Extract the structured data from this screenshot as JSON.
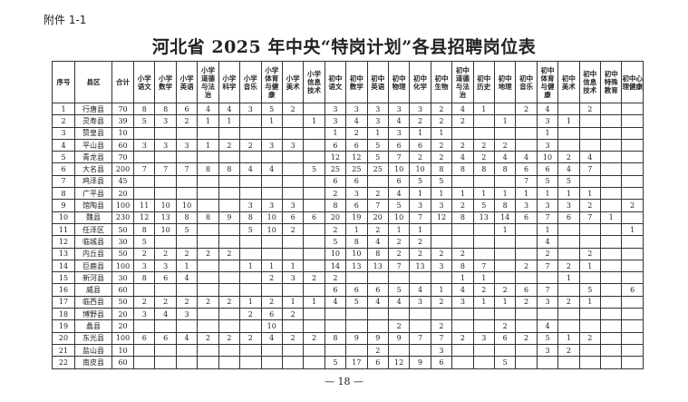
{
  "attachment_label": "附件 1-1",
  "title": "河北省 2025 年中央“特岗计划”各县招聘岗位表",
  "page_number": "— 18 —",
  "table": {
    "headers": [
      "序号",
      "县区",
      "合计",
      "小学语文",
      "小学数学",
      "小学英语",
      "小学道德与法治",
      "小学科学",
      "小学音乐",
      "小学体育与健康",
      "小学美术",
      "小学信息技术",
      "初中语文",
      "初中数学",
      "初中英语",
      "初中物理",
      "初中化学",
      "初中生物",
      "初中道德与法治",
      "初中历史",
      "初中地理",
      "初中音乐",
      "初中体育与健康",
      "初中美术",
      "初中信息技术",
      "初中特殊教育",
      "初中心理健康"
    ],
    "rows": [
      [
        "1",
        "行唐县",
        "70",
        "8",
        "8",
        "6",
        "4",
        "4",
        "3",
        "5",
        "2",
        "",
        "3",
        "3",
        "3",
        "3",
        "3",
        "2",
        "4",
        "1",
        "",
        "2",
        "4",
        "",
        "2",
        "",
        ""
      ],
      [
        "2",
        "灵寿县",
        "39",
        "5",
        "3",
        "2",
        "1",
        "1",
        "",
        "1",
        "",
        "1",
        "3",
        "4",
        "3",
        "4",
        "2",
        "2",
        "2",
        "",
        "1",
        "",
        "3",
        "1",
        "",
        "",
        ""
      ],
      [
        "3",
        "赞皇县",
        "10",
        "",
        "",
        "",
        "",
        "",
        "",
        "",
        "",
        "",
        "1",
        "2",
        "1",
        "3",
        "1",
        "1",
        "",
        "",
        "",
        "",
        "1",
        "",
        "",
        "",
        ""
      ],
      [
        "4",
        "平山县",
        "60",
        "3",
        "3",
        "3",
        "1",
        "2",
        "2",
        "3",
        "3",
        "",
        "6",
        "6",
        "5",
        "6",
        "6",
        "2",
        "2",
        "2",
        "2",
        "",
        "3",
        "",
        "",
        "",
        ""
      ],
      [
        "5",
        "青龙县",
        "70",
        "",
        "",
        "",
        "",
        "",
        "",
        "",
        "",
        "",
        "12",
        "12",
        "5",
        "7",
        "2",
        "2",
        "4",
        "2",
        "4",
        "4",
        "10",
        "2",
        "4",
        "",
        ""
      ],
      [
        "6",
        "大名县",
        "200",
        "7",
        "7",
        "7",
        "8",
        "8",
        "4",
        "4",
        "",
        "5",
        "25",
        "25",
        "25",
        "10",
        "10",
        "8",
        "8",
        "8",
        "8",
        "6",
        "6",
        "4",
        "7",
        "",
        ""
      ],
      [
        "7",
        "鸡泽县",
        "45",
        "",
        "",
        "",
        "",
        "",
        "",
        "",
        "",
        "",
        "6",
        "6",
        "",
        "6",
        "5",
        "5",
        "",
        "",
        "",
        "7",
        "5",
        "5",
        "",
        "",
        ""
      ],
      [
        "8",
        "广平县",
        "20",
        "",
        "",
        "",
        "",
        "",
        "",
        "",
        "",
        "",
        "2",
        "3",
        "2",
        "4",
        "1",
        "1",
        "1",
        "1",
        "1",
        "1",
        "1",
        "1",
        "1",
        "",
        ""
      ],
      [
        "9",
        "馆陶县",
        "100",
        "11",
        "10",
        "10",
        "",
        "",
        "3",
        "3",
        "3",
        "",
        "8",
        "6",
        "7",
        "5",
        "3",
        "3",
        "2",
        "5",
        "8",
        "3",
        "3",
        "3",
        "2",
        "",
        "2"
      ],
      [
        "10",
        "魏县",
        "230",
        "12",
        "13",
        "8",
        "8",
        "9",
        "8",
        "10",
        "6",
        "6",
        "20",
        "19",
        "20",
        "10",
        "7",
        "12",
        "8",
        "13",
        "14",
        "6",
        "7",
        "6",
        "7",
        "1",
        ""
      ],
      [
        "11",
        "任泽区",
        "50",
        "8",
        "10",
        "5",
        "",
        "",
        "5",
        "10",
        "2",
        "",
        "2",
        "1",
        "2",
        "1",
        "1",
        "",
        "",
        "",
        "1",
        "",
        "1",
        "",
        "",
        "",
        "1"
      ],
      [
        "12",
        "临城县",
        "30",
        "5",
        "",
        "",
        "",
        "",
        "",
        "",
        "",
        "",
        "5",
        "8",
        "4",
        "2",
        "2",
        "",
        "",
        "",
        "",
        "",
        "4",
        "",
        "",
        "",
        ""
      ],
      [
        "13",
        "内丘县",
        "50",
        "2",
        "2",
        "2",
        "2",
        "2",
        "",
        "",
        "",
        "",
        "10",
        "10",
        "8",
        "2",
        "2",
        "2",
        "2",
        "",
        "",
        "",
        "2",
        "",
        "2",
        "",
        ""
      ],
      [
        "14",
        "巨鹿县",
        "100",
        "3",
        "3",
        "1",
        "",
        "",
        "1",
        "1",
        "1",
        "",
        "14",
        "13",
        "13",
        "7",
        "13",
        "3",
        "8",
        "7",
        "",
        "2",
        "7",
        "2",
        "1",
        "",
        ""
      ],
      [
        "15",
        "新河县",
        "30",
        "8",
        "6",
        "4",
        "",
        "",
        "",
        "2",
        "3",
        "2",
        "2",
        "",
        "",
        "",
        "",
        "",
        "1",
        "1",
        "",
        "",
        "",
        "1",
        "",
        "",
        ""
      ],
      [
        "16",
        "威县",
        "60",
        "",
        "",
        "",
        "",
        "",
        "",
        "",
        "",
        "",
        "6",
        "6",
        "6",
        "5",
        "4",
        "1",
        "4",
        "2",
        "2",
        "6",
        "7",
        "",
        "5",
        "",
        "6"
      ],
      [
        "17",
        "临西县",
        "50",
        "2",
        "2",
        "2",
        "2",
        "2",
        "1",
        "2",
        "1",
        "1",
        "4",
        "5",
        "4",
        "4",
        "3",
        "2",
        "3",
        "1",
        "1",
        "2",
        "3",
        "2",
        "1",
        "",
        ""
      ],
      [
        "18",
        "博野县",
        "20",
        "3",
        "4",
        "3",
        "",
        "",
        "2",
        "6",
        "2",
        "",
        "",
        "",
        "",
        "",
        "",
        "",
        "",
        "",
        "",
        "",
        "",
        "",
        "",
        "",
        ""
      ],
      [
        "19",
        "蠡县",
        "20",
        "",
        "",
        "",
        "",
        "",
        "",
        "10",
        "",
        "",
        "",
        "",
        "",
        "2",
        "",
        "2",
        "",
        "",
        "2",
        "",
        "4",
        "",
        "",
        "",
        ""
      ],
      [
        "20",
        "东光县",
        "100",
        "6",
        "6",
        "4",
        "2",
        "2",
        "2",
        "4",
        "2",
        "2",
        "8",
        "9",
        "9",
        "9",
        "7",
        "7",
        "2",
        "3",
        "6",
        "2",
        "5",
        "1",
        "2",
        "",
        ""
      ],
      [
        "21",
        "盐山县",
        "10",
        "",
        "",
        "",
        "",
        "",
        "",
        "",
        "",
        "",
        "",
        "",
        "2",
        "",
        "",
        "3",
        "",
        "",
        "",
        "",
        "3",
        "2",
        "",
        "",
        ""
      ],
      [
        "22",
        "南皮县",
        "60",
        "",
        "",
        "",
        "",
        "",
        "",
        "",
        "",
        "",
        "5",
        "17",
        "6",
        "12",
        "9",
        "6",
        "",
        "",
        "5",
        "",
        "",
        "",
        "",
        "",
        ""
      ]
    ]
  }
}
